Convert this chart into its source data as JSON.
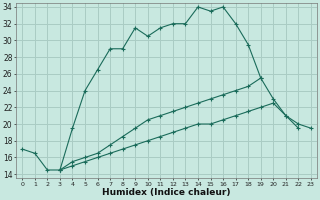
{
  "xlabel": "Humidex (Indice chaleur)",
  "background_color": "#c8e8e0",
  "grid_color": "#aaccc4",
  "line_color": "#1a6b5a",
  "xlim": [
    -0.5,
    23.5
  ],
  "ylim": [
    13.5,
    34.5
  ],
  "xtick_labels": [
    "0",
    "1",
    "2",
    "3",
    "4",
    "5",
    "6",
    "7",
    "8",
    "9",
    "10",
    "11",
    "12",
    "13",
    "14",
    "15",
    "16",
    "17",
    "18",
    "19",
    "20",
    "21",
    "22",
    "23"
  ],
  "ytick_values": [
    14,
    16,
    18,
    20,
    22,
    24,
    26,
    28,
    30,
    32,
    34
  ],
  "curve1_x": [
    0,
    1,
    2,
    3,
    4,
    5,
    6,
    7,
    8,
    9,
    10,
    11,
    12,
    13,
    14,
    15,
    16,
    17,
    18,
    19
  ],
  "curve1_y": [
    17.0,
    16.5,
    14.5,
    14.5,
    19.5,
    24.0,
    26.5,
    29.0,
    29.0,
    31.5,
    30.5,
    31.5,
    32.0,
    32.0,
    34.0,
    33.5,
    34.0,
    32.0,
    29.5,
    25.5
  ],
  "curve2_x": [
    3,
    4,
    5,
    6,
    7,
    8,
    9,
    10,
    11,
    12,
    13,
    14,
    15,
    16,
    17,
    18,
    19,
    20,
    21,
    22
  ],
  "curve2_y": [
    14.5,
    15.5,
    16.0,
    16.5,
    17.5,
    18.5,
    19.5,
    20.5,
    21.0,
    21.5,
    22.0,
    22.5,
    23.0,
    23.5,
    24.0,
    24.5,
    25.5,
    23.0,
    21.0,
    19.5
  ],
  "curve3_x": [
    3,
    4,
    5,
    6,
    7,
    8,
    9,
    10,
    11,
    12,
    13,
    14,
    15,
    16,
    17,
    18,
    19,
    20,
    21,
    22,
    23
  ],
  "curve3_y": [
    14.5,
    15.0,
    15.5,
    16.0,
    16.5,
    17.0,
    17.5,
    18.0,
    18.5,
    19.0,
    19.5,
    20.0,
    20.0,
    20.5,
    21.0,
    21.5,
    22.0,
    22.5,
    21.0,
    20.0,
    19.5
  ]
}
